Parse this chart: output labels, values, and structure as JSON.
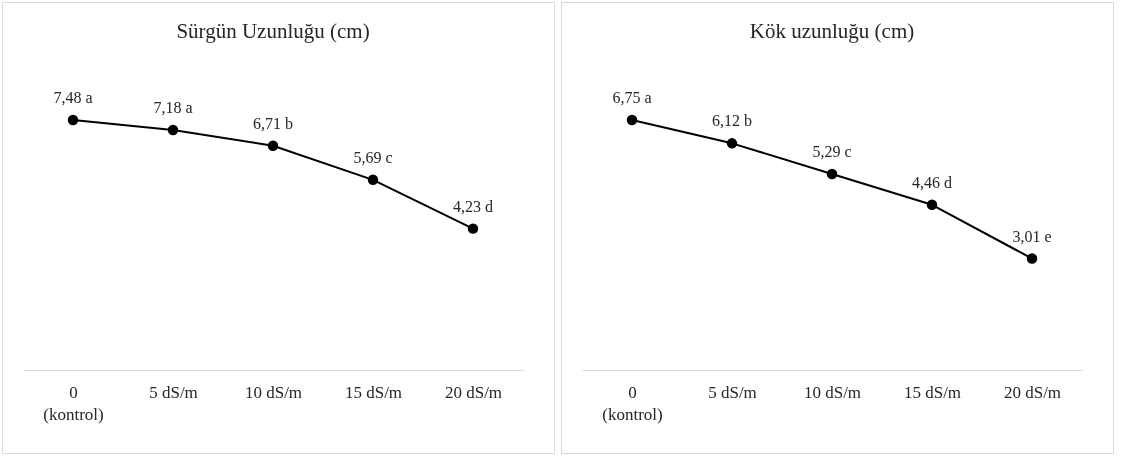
{
  "chart_data": [
    {
      "type": "line",
      "title": "Sürgün Uzunluğu (cm)",
      "categories": [
        "0\n(kontrol)",
        "5 dS/m",
        "10 dS/m",
        "15 dS/m",
        "20 dS/m"
      ],
      "series": [
        {
          "color": "#000000",
          "values": [
            7.48,
            7.18,
            6.71,
            5.69,
            4.23
          ],
          "value_labels": [
            "7,48 a",
            "7,18 a",
            "6,71 b",
            "5,69 c",
            "4,23 d"
          ]
        }
      ],
      "tick_labels": "x",
      "marker": "circle",
      "line_style": "solid"
    },
    {
      "type": "line",
      "title": "Kök uzunluğu (cm)",
      "categories": [
        "0\n(kontrol)",
        "5 dS/m",
        "10 dS/m",
        "15 dS/m",
        "20 dS/m"
      ],
      "series": [
        {
          "color": "#000000",
          "values": [
            6.75,
            6.12,
            5.29,
            4.46,
            3.01
          ],
          "value_labels": [
            "6,75 a",
            "6,12 b",
            "5,29 c",
            "4,46 d",
            "3,01 e"
          ]
        }
      ],
      "tick_labels": "x",
      "marker": "circle",
      "line_style": "solid"
    }
  ]
}
